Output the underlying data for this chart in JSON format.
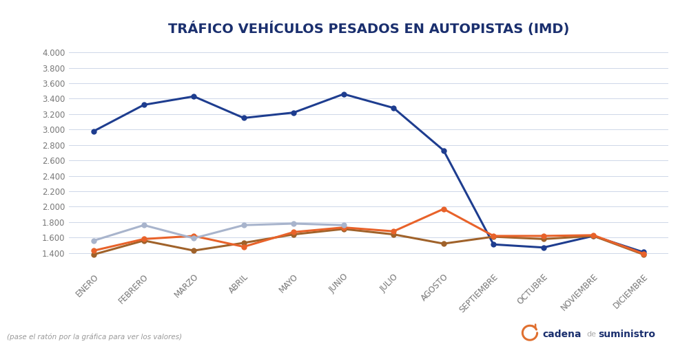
{
  "title": "TRÁFICO VEHÍCULOS PESADOS EN AUTOPISTAS (IMD)",
  "months": [
    "ENERO",
    "FEBRERO",
    "MARZO",
    "ABRIL",
    "MAYO",
    "JUNIO",
    "JULIO",
    "AGOSTO",
    "SEPTIEMBRE",
    "OCTUBRE",
    "NOVIEMBRE",
    "DICIEMBRE"
  ],
  "series": {
    "2021": [
      2980,
      3320,
      3430,
      3150,
      3220,
      3460,
      3280,
      2730,
      1510,
      1470,
      1620,
      1410
    ],
    "2022": [
      1380,
      1560,
      1430,
      1530,
      1640,
      1710,
      1640,
      1520,
      1610,
      1580,
      1620,
      1380
    ],
    "2023": [
      1430,
      1580,
      1620,
      1480,
      1670,
      1730,
      1680,
      1970,
      1620,
      1620,
      1630,
      1390
    ],
    "2024": [
      1560,
      1760,
      1590,
      1760,
      1780,
      1760,
      null,
      null,
      null,
      null,
      null,
      null
    ]
  },
  "colors": {
    "2021": "#1e3d8f",
    "2022": "#a0622a",
    "2023": "#e8622a",
    "2024": "#a8b4cc"
  },
  "ylim": [
    1200,
    4100
  ],
  "yticks": [
    1400,
    1600,
    1800,
    2000,
    2200,
    2400,
    2600,
    2800,
    3000,
    3200,
    3400,
    3600,
    3800,
    4000
  ],
  "footnote": "(pase el ratón por la gráfica para ver los valores)",
  "background_color": "#ffffff",
  "grid_color": "#cdd6e8",
  "title_color": "#1a2f6e",
  "tick_color": "#777777",
  "marker_size": 6,
  "line_width": 2.2,
  "brand_text1": "cadena",
  "brand_text2": "de",
  "brand_text3": "suministro"
}
